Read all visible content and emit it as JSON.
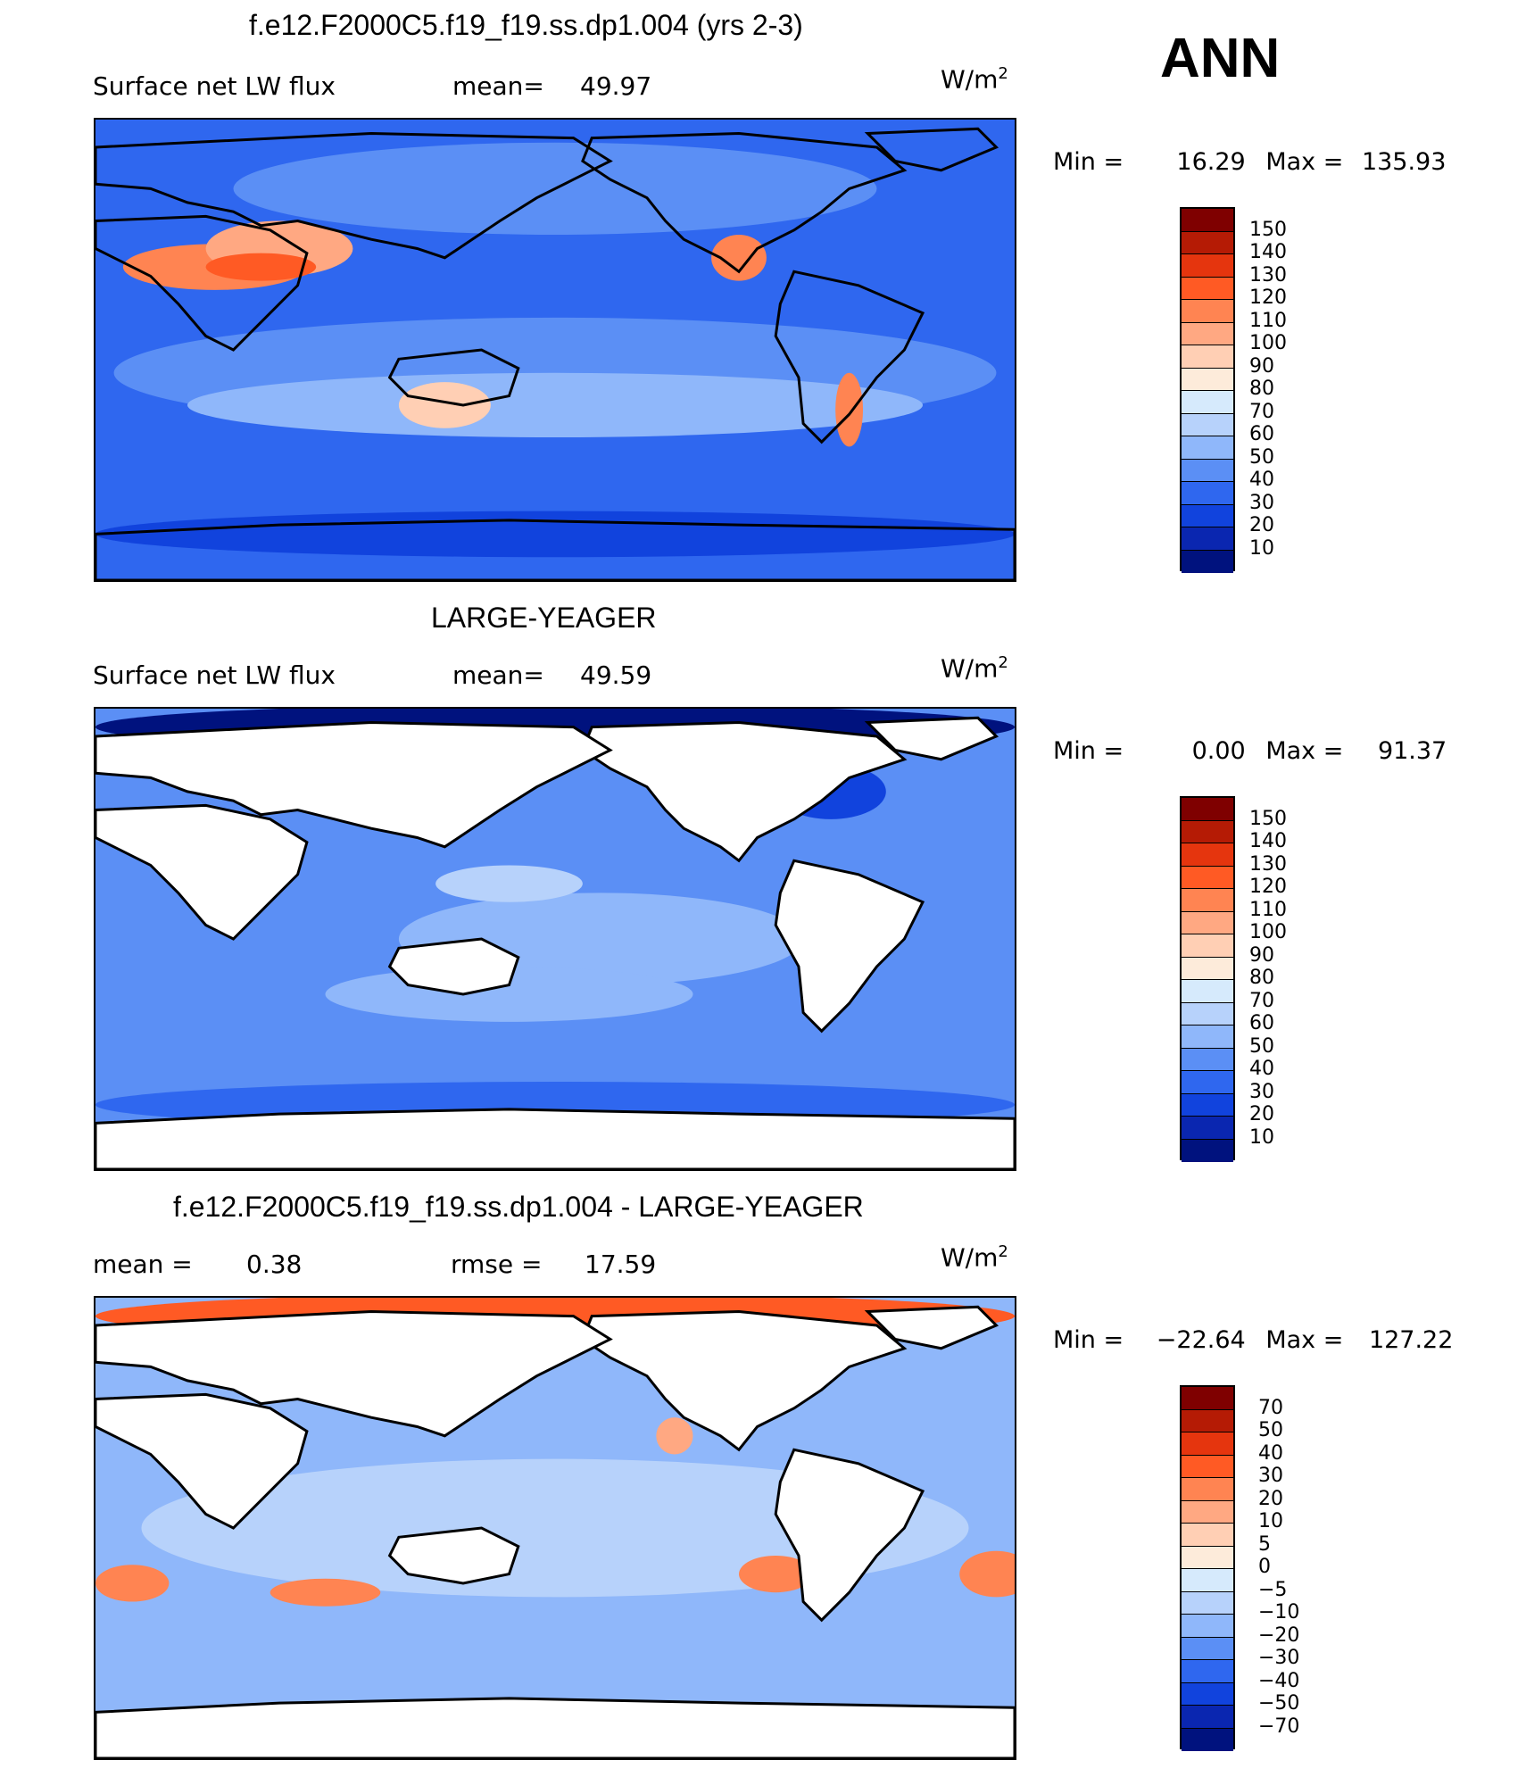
{
  "season": "ANN",
  "panels": [
    {
      "title": "f.e12.F2000C5.f19_f19.ss.dp1.004 (yrs 2-3)",
      "left_label": "Surface net LW flux",
      "stat_label": "mean=",
      "stat_value": "49.97",
      "units": "W/m",
      "units_sup": "2",
      "min_label": "Min =",
      "min_value": "16.29",
      "max_label": "Max =",
      "max_value": "135.93",
      "colorbar": {
        "labels": [
          "150",
          "140",
          "130",
          "120",
          "110",
          "100",
          "90",
          "80",
          "70",
          "60",
          "50",
          "40",
          "30",
          "20",
          "10"
        ],
        "colors": [
          "#7f0000",
          "#b51b05",
          "#e5350e",
          "#ff5a24",
          "#ff8452",
          "#ffa882",
          "#ffcfb4",
          "#fdebda",
          "#d6eafc",
          "#b7d2fb",
          "#8fb7fa",
          "#5b8ff5",
          "#2f67ef",
          "#1143dd",
          "#0a26b0",
          "#00127e"
        ]
      },
      "map_fields": {
        "background": "#2f67ef",
        "blobs": [
          [
            "#5b8ff5",
            0.5,
            0.55,
            0.48,
            0.12
          ],
          [
            "#8fb7fa",
            0.5,
            0.62,
            0.4,
            0.07
          ],
          [
            "#5b8ff5",
            0.5,
            0.15,
            0.35,
            0.1
          ],
          [
            "#1143dd",
            0.5,
            0.9,
            0.5,
            0.05
          ],
          [
            "#ff8452",
            0.13,
            0.32,
            0.1,
            0.05
          ],
          [
            "#ffa882",
            0.2,
            0.28,
            0.08,
            0.06
          ],
          [
            "#ff5a24",
            0.18,
            0.32,
            0.06,
            0.03
          ],
          [
            "#ffcfb4",
            0.38,
            0.62,
            0.05,
            0.05
          ],
          [
            "#ff8452",
            0.82,
            0.63,
            0.015,
            0.08
          ],
          [
            "#ff8452",
            0.7,
            0.3,
            0.03,
            0.05
          ]
        ]
      }
    },
    {
      "title": "LARGE-YEAGER",
      "left_label": "Surface net LW flux",
      "stat_label": "mean=",
      "stat_value": "49.59",
      "units": "W/m",
      "units_sup": "2",
      "min_label": "Min =",
      "min_value": "0.00",
      "max_label": "Max =",
      "max_value": "91.37",
      "colorbar": {
        "labels": [
          "150",
          "140",
          "130",
          "120",
          "110",
          "100",
          "90",
          "80",
          "70",
          "60",
          "50",
          "40",
          "30",
          "20",
          "10"
        ],
        "colors": [
          "#7f0000",
          "#b51b05",
          "#e5350e",
          "#ff5a24",
          "#ff8452",
          "#ffa882",
          "#ffcfb4",
          "#fdebda",
          "#d6eafc",
          "#b7d2fb",
          "#8fb7fa",
          "#5b8ff5",
          "#2f67ef",
          "#1143dd",
          "#0a26b0",
          "#00127e"
        ]
      },
      "map_fields": {
        "background": "#5b8ff5",
        "blobs": [
          [
            "#8fb7fa",
            0.55,
            0.5,
            0.22,
            0.1
          ],
          [
            "#8fb7fa",
            0.45,
            0.62,
            0.2,
            0.06
          ],
          [
            "#b7d2fb",
            0.45,
            0.38,
            0.08,
            0.04
          ],
          [
            "#2f67ef",
            0.5,
            0.86,
            0.5,
            0.05
          ],
          [
            "#00127e",
            0.5,
            0.04,
            0.5,
            0.05
          ],
          [
            "#1143dd",
            0.8,
            0.18,
            0.06,
            0.06
          ]
        ]
      }
    },
    {
      "title": "f.e12.F2000C5.f19_f19.ss.dp1.004 - LARGE-YEAGER",
      "left_label": "mean =",
      "stat_label": "rmse =",
      "stat_value": "17.59",
      "left_value": "0.38",
      "units": "W/m",
      "units_sup": "2",
      "min_label": "Min =",
      "min_value": "−22.64",
      "max_label": "Max =",
      "max_value": "127.22",
      "colorbar": {
        "labels": [
          "70",
          "50",
          "40",
          "30",
          "20",
          "10",
          "5",
          "0",
          "−5",
          "−10",
          "−20",
          "−30",
          "−40",
          "−50",
          "−70"
        ],
        "colors": [
          "#7f0000",
          "#b51b05",
          "#e5350e",
          "#ff5a24",
          "#ff8452",
          "#ffa882",
          "#ffcfb4",
          "#fdebda",
          "#d6eafc",
          "#b7d2fb",
          "#8fb7fa",
          "#5b8ff5",
          "#2f67ef",
          "#1143dd",
          "#0a26b0",
          "#00127e"
        ]
      },
      "map_fields": {
        "background": "#8fb7fa",
        "blobs": [
          [
            "#b7d2fb",
            0.5,
            0.5,
            0.45,
            0.15
          ],
          [
            "#ff8452",
            0.25,
            0.64,
            0.06,
            0.03
          ],
          [
            "#ff8452",
            0.74,
            0.6,
            0.04,
            0.04
          ],
          [
            "#ff8452",
            0.98,
            0.6,
            0.04,
            0.05
          ],
          [
            "#ff8452",
            0.04,
            0.62,
            0.04,
            0.04
          ],
          [
            "#ffa882",
            0.63,
            0.3,
            0.02,
            0.04
          ],
          [
            "#ff5a24",
            0.5,
            0.04,
            0.5,
            0.05
          ],
          [
            "#ff5a24",
            0.5,
            0.91,
            0.5,
            0.03
          ]
        ]
      }
    }
  ]
}
